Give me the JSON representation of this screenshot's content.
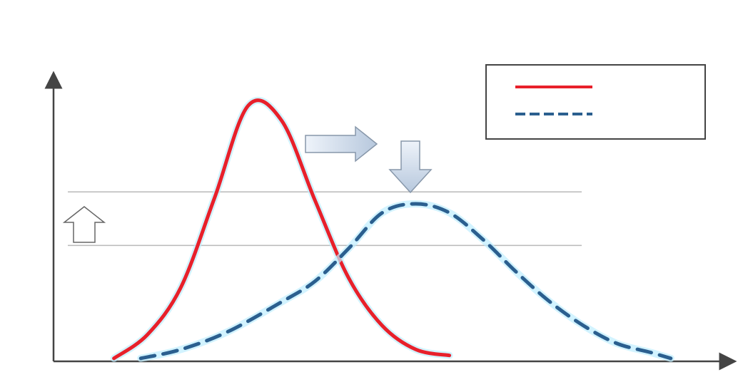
{
  "chart_data": {
    "type": "line",
    "title": "",
    "ylabel": "",
    "xlabel": "",
    "xlim": [
      0,
      100
    ],
    "ylim": [
      0,
      100
    ],
    "grid": false,
    "legend_position": "top-right",
    "series": [
      {
        "name": "",
        "style": "solid",
        "color": "#e8202a",
        "x": [
          9,
          14,
          19,
          24,
          29,
          34,
          39,
          44,
          49,
          54,
          59
        ],
        "y": [
          1,
          9,
          25,
          55,
          86,
          81,
          54,
          28,
          12,
          4,
          2
        ]
      },
      {
        "name": "",
        "style": "dashed",
        "color": "#2b5f8f",
        "x": [
          13,
          19,
          26,
          34,
          39,
          44,
          49,
          54,
          59,
          64,
          69,
          74,
          79,
          84,
          89,
          92
        ],
        "y": [
          1,
          4,
          10,
          20,
          27,
          38,
          50,
          53,
          50,
          41,
          30,
          20,
          12,
          6,
          3,
          1
        ]
      }
    ],
    "reference_lines": [
      {
        "y": 57
      },
      {
        "y": 39
      }
    ],
    "annotations": [
      {
        "id": "shift",
        "text": ""
      },
      {
        "id": "lower",
        "text": ""
      },
      {
        "id": "capacity-up",
        "text": ""
      },
      {
        "id": "capacity",
        "text": ""
      }
    ]
  },
  "colors": {
    "axis": "#444444",
    "reference_line": "#b9b9b9",
    "glow": "#bfeeff",
    "arrow_fill": "#dce6f2",
    "arrow_stroke": "#8797aa"
  }
}
